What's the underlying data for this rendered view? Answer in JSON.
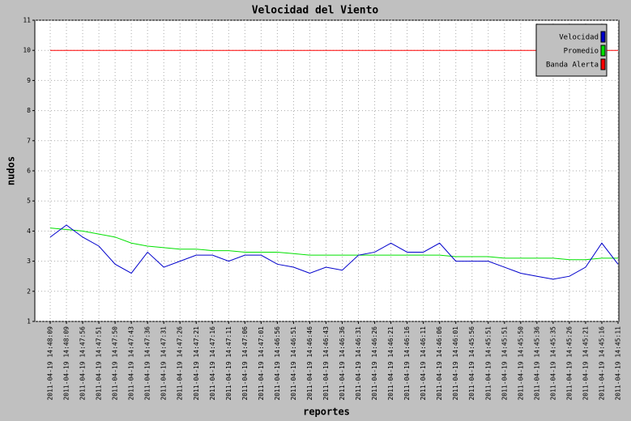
{
  "chart_data": {
    "type": "line",
    "title": "Velocidad del Viento",
    "x_label": "reportes",
    "y_label": "nudos",
    "categories": [
      "2011-04-19 14:48:09",
      "2011-04-19 14:48:09",
      "2011-04-19 14:47:56",
      "2011-04-19 14:47:51",
      "2011-04-19 14:47:50",
      "2011-04-19 14:47:43",
      "2011-04-19 14:47:36",
      "2011-04-19 14:47:31",
      "2011-04-19 14:47:26",
      "2011-04-19 14:47:21",
      "2011-04-19 14:47:16",
      "2011-04-19 14:47:11",
      "2011-04-19 14:47:06",
      "2011-04-19 14:47:01",
      "2011-04-19 14:46:56",
      "2011-04-19 14:46:51",
      "2011-04-19 14:46:46",
      "2011-04-19 14:46:43",
      "2011-04-19 14:46:36",
      "2011-04-19 14:46:31",
      "2011-04-19 14:46:26",
      "2011-04-19 14:46:21",
      "2011-04-19 14:46:16",
      "2011-04-19 14:46:11",
      "2011-04-19 14:46:06",
      "2011-04-19 14:46:01",
      "2011-04-19 14:45:56",
      "2011-04-19 14:45:51",
      "2011-04-19 14:45:51",
      "2011-04-19 14:45:50",
      "2011-04-19 14:45:36",
      "2011-04-19 14:45:35",
      "2011-04-19 14:45:26",
      "2011-04-19 14:45:21",
      "2011-04-19 14:45:16",
      "2011-04-19 14:45:11"
    ],
    "series": [
      {
        "name": "Velocidad",
        "color": "#0000cc",
        "values": [
          3.8,
          4.2,
          3.8,
          3.5,
          2.9,
          2.6,
          3.3,
          2.8,
          3.0,
          3.2,
          3.2,
          3.0,
          3.2,
          3.2,
          2.9,
          2.8,
          2.6,
          2.8,
          2.7,
          3.2,
          3.3,
          3.6,
          3.3,
          3.3,
          3.6,
          3.0,
          3.0,
          3.0,
          2.8,
          2.6,
          2.5,
          2.4,
          2.5,
          2.8,
          3.6,
          2.9
        ]
      },
      {
        "name": "Promedio",
        "color": "#00e000",
        "values": [
          4.1,
          4.05,
          4.0,
          3.9,
          3.8,
          3.6,
          3.5,
          3.45,
          3.4,
          3.4,
          3.35,
          3.35,
          3.3,
          3.3,
          3.3,
          3.25,
          3.2,
          3.2,
          3.2,
          3.2,
          3.2,
          3.2,
          3.2,
          3.2,
          3.2,
          3.15,
          3.15,
          3.15,
          3.1,
          3.1,
          3.1,
          3.1,
          3.05,
          3.05,
          3.1,
          3.1
        ]
      },
      {
        "name": "Banda Alerta",
        "color": "#ff0000",
        "values": [
          10,
          10,
          10,
          10,
          10,
          10,
          10,
          10,
          10,
          10,
          10,
          10,
          10,
          10,
          10,
          10,
          10,
          10,
          10,
          10,
          10,
          10,
          10,
          10,
          10,
          10,
          10,
          10,
          10,
          10,
          10,
          10,
          10,
          10,
          10,
          10
        ]
      }
    ],
    "ylim": [
      1,
      11
    ],
    "yticks": [
      1,
      2,
      3,
      4,
      5,
      6,
      7,
      8,
      9,
      10,
      11
    ],
    "grid": true,
    "legend": "upper right"
  }
}
